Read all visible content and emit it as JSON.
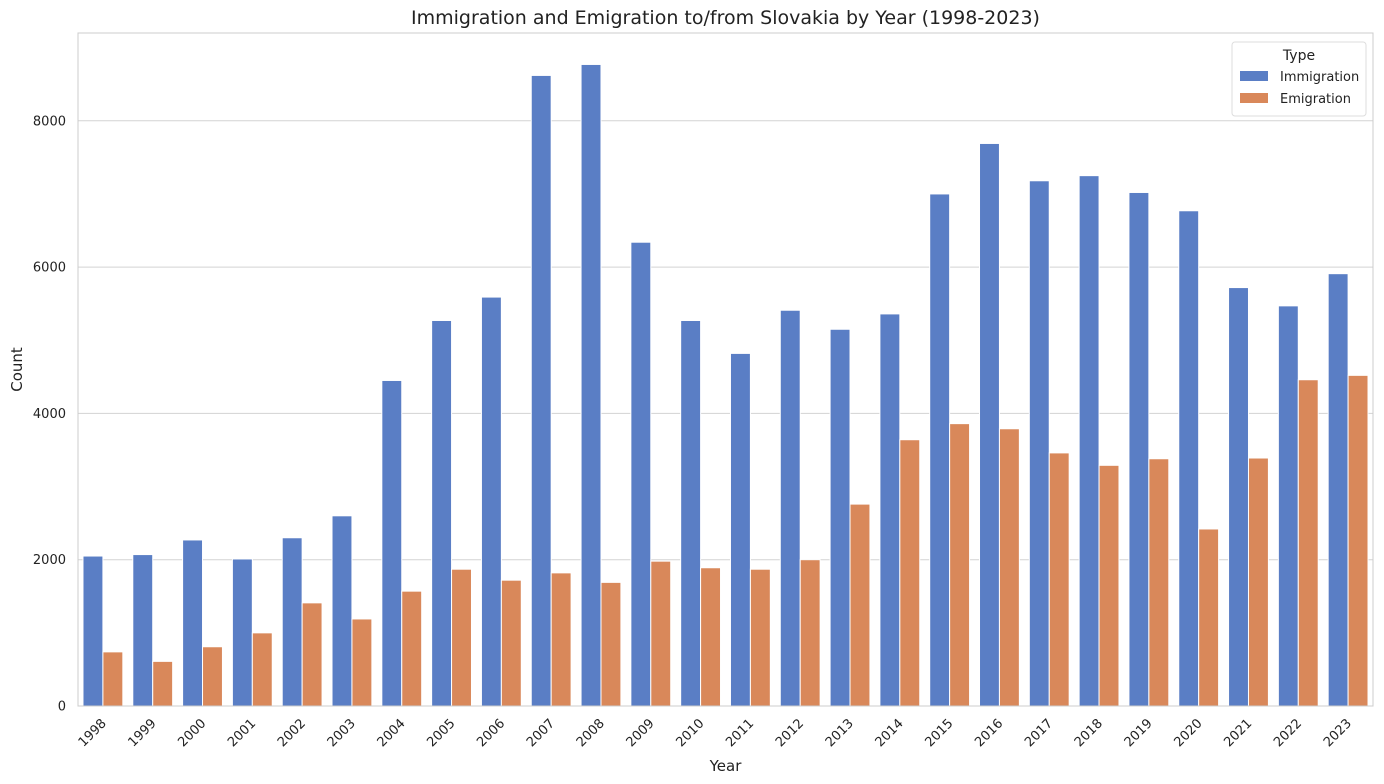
{
  "chart_data": {
    "type": "bar",
    "title": "Immigration and Emigration to/from Slovakia by Year (1998-2023)",
    "xlabel": "Year",
    "ylabel": "Count",
    "ylim": [
      0,
      9200
    ],
    "yticks": [
      0,
      2000,
      4000,
      6000,
      8000
    ],
    "grid": "horizontal",
    "categories": [
      "1998",
      "1999",
      "2000",
      "2001",
      "2002",
      "2003",
      "2004",
      "2005",
      "2006",
      "2007",
      "2008",
      "2009",
      "2010",
      "2011",
      "2012",
      "2013",
      "2014",
      "2015",
      "2016",
      "2017",
      "2018",
      "2019",
      "2020",
      "2021",
      "2022",
      "2023"
    ],
    "series": [
      {
        "name": "Immigration",
        "color": "#5a7ec5",
        "values": [
          2050,
          2070,
          2270,
          2010,
          2300,
          2600,
          4450,
          5270,
          5590,
          8620,
          8770,
          6340,
          5270,
          4820,
          5410,
          5150,
          5360,
          7000,
          7690,
          7180,
          7250,
          7020,
          6770,
          5720,
          5470,
          5910
        ]
      },
      {
        "name": "Emigration",
        "color": "#d9885a",
        "values": [
          740,
          610,
          810,
          1000,
          1410,
          1190,
          1570,
          1870,
          1720,
          1820,
          1690,
          1980,
          1890,
          1870,
          2000,
          2760,
          3640,
          3860,
          3790,
          3460,
          3290,
          3380,
          2420,
          3390,
          4460,
          4520
        ]
      }
    ],
    "legend": {
      "title": "Type",
      "placement": "top-right"
    }
  }
}
